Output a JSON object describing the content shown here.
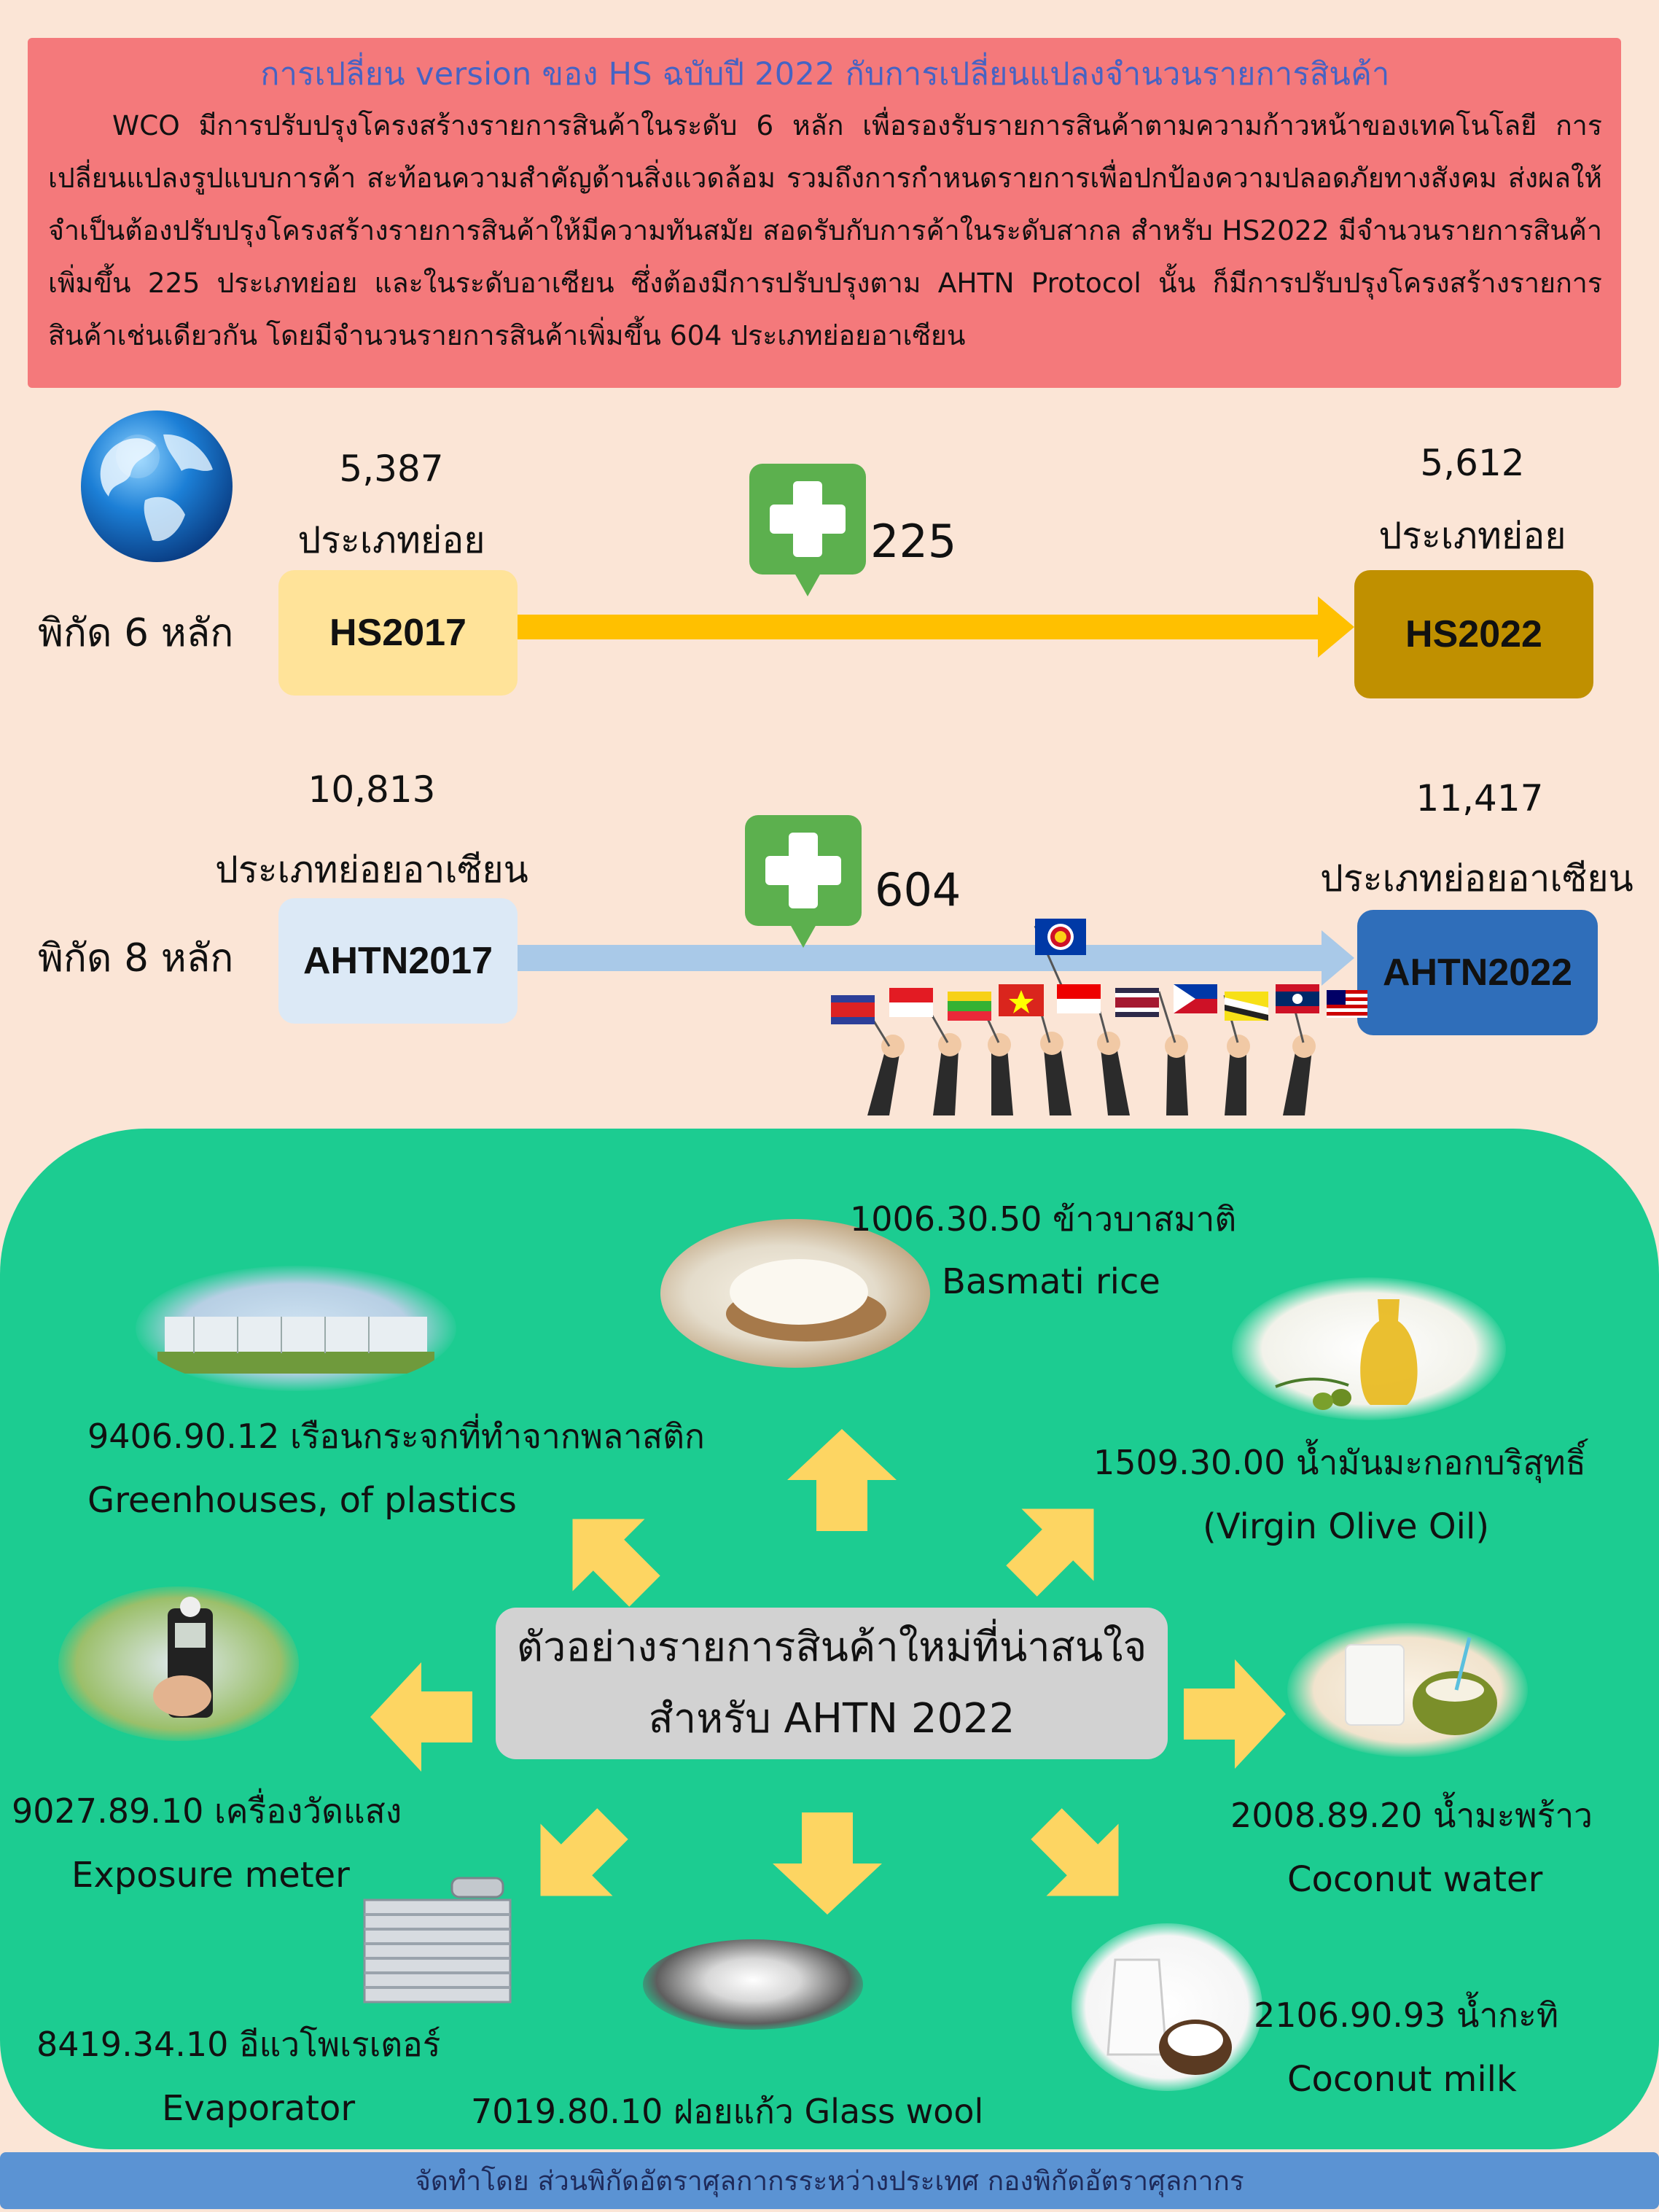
{
  "header": {
    "title": "การเปลี่ยน version ของ HS ฉบับปี 2022 กับการเปลี่ยนแปลงจำนวนรายการสินค้า",
    "body": "WCO มีการปรับปรุงโครงสร้างรายการสินค้าในระดับ 6 หลัก เพื่อรองรับรายการสินค้าตามความก้าวหน้าของเทคโนโลยี การเปลี่ยนแปลงรูปแบบการค้า สะท้อนความสำคัญด้านสิ่งแวดล้อม รวมถึงการกำหนดรายการเพื่อปกป้องความปลอดภัยทางสังคม ส่งผลให้จำเป็นต้องปรับปรุงโครงสร้างรายการสินค้าให้มีความทันสมัย สอดรับกับการค้าในระดับสากล สำหรับ HS2022 มีจำนวนรายการสินค้าเพิ่มขึ้น 225 ประเภทย่อย และในระดับอาเซียน ซึ่งต้องมีการปรับปรุงตาม AHTN Protocol นั้น ก็มีการปรับปรุงโครงสร้างรายการสินค้าเช่นเดียวกัน โดยมีจำนวนรายการสินค้าเพิ่มขึ้น 604 ประเภทย่อยอาเซียน"
  },
  "hs_row": {
    "label": "พิกัด 6 หลัก",
    "from_count": "5,387",
    "from_unit": "ประเภทย่อย",
    "from_code": "HS2017",
    "increase": "225",
    "to_count": "5,612",
    "to_unit": "ประเภทย่อย",
    "to_code": "HS2022"
  },
  "ahtn_row": {
    "label": "พิกัด 8 หลัก",
    "from_count": "10,813",
    "from_unit": "ประเภทย่อยอาเซียน",
    "from_code": "AHTN2017",
    "increase": "604",
    "to_count": "11,417",
    "to_unit": "ประเภทย่อยอาเซียน",
    "to_code": "AHTN2022"
  },
  "panel": {
    "center_line1": "ตัวอย่างรายการสินค้าใหม่ที่น่าสนใจ",
    "center_line2": "สำหรับ AHTN 2022",
    "items": {
      "rice": {
        "code": "1006.30.50 ข้าวบาสมาติ",
        "en": "Basmati rice"
      },
      "greenhouse": {
        "code": "9406.90.12 เรือนกระจกที่ทำจากพลาสติก",
        "en": "Greenhouses, of plastics"
      },
      "olive": {
        "code": "1509.30.00 น้ำมันมะกอกบริสุทธิ์",
        "en": "(Virgin Olive Oil)"
      },
      "meter": {
        "code": "9027.89.10 เครื่องวัดแสง",
        "en": "Exposure meter"
      },
      "coconut_water": {
        "code": "2008.89.20 น้ำมะพร้าว",
        "en": "Coconut water"
      },
      "evaporator": {
        "code": "8419.34.10 อีแวโพเรเตอร์",
        "en": "Evaporator"
      },
      "glass_wool": {
        "code": "7019.80.10 ฝอยแก้ว Glass wool"
      },
      "coconut_milk": {
        "code": "2106.90.93 น้ำกะทิ",
        "en": "Coconut milk"
      }
    }
  },
  "footer": {
    "text": "จัดทำโดย ส่วนพิกัดอัตราศุลกากรระหว่างประเทศ กองพิกัดอัตราศุลกากร"
  },
  "colors": {
    "header_bg": "#f4797b",
    "title": "#4663c3",
    "hs_arrow": "#ffc000",
    "ahtn_arrow": "#a9c9e8",
    "panel": "#1ccc91",
    "plus": "#5cb04e",
    "yellow_arrow": "#fdd562"
  },
  "icons": [
    "globe-icon",
    "plus-icon",
    "asean-flags-illustration",
    "yellow-arrow-icon"
  ]
}
